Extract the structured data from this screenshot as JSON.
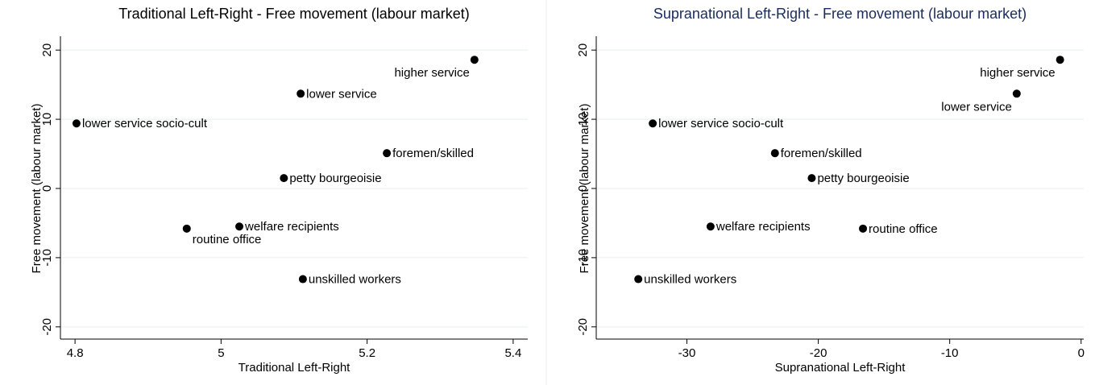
{
  "chart_data": [
    {
      "type": "scatter",
      "title": "Traditional Left-Right - Free movement (labour market)",
      "title_color": "#000000",
      "x_label": "Traditional Left-Right",
      "y_label": "Free movement (labour market)",
      "labels": [
        "higher service",
        "lower service",
        "lower service socio-cult",
        "foremen/skilled",
        "petty bourgeoisie",
        "welfare recipients",
        "routine office",
        "unskilled workers"
      ],
      "x": [
        5.347,
        5.109,
        4.802,
        5.227,
        5.086,
        5.025,
        4.953,
        5.112
      ],
      "values": [
        18.6,
        13.7,
        9.4,
        5.1,
        1.5,
        -5.5,
        -5.8,
        -13.1
      ],
      "color": "#000000",
      "grid": true,
      "xlim": [
        4.78,
        5.42
      ],
      "xticks": [
        4.8,
        5,
        5.2,
        5.4
      ],
      "ylim": [
        -22,
        22
      ],
      "yticks": [
        -20,
        -10,
        0,
        10,
        20
      ]
    },
    {
      "type": "scatter",
      "title": "Supranational Left-Right - Free movement (labour market)",
      "title_color": "#1a2b5e",
      "x_label": "Supranational Left-Right",
      "y_label": "Free movement (labour market)",
      "labels": [
        "higher service",
        "lower service",
        "lower service socio-cult",
        "foremen/skilled",
        "petty bourgeoisie",
        "welfare recipients",
        "routine office",
        "unskilled workers"
      ],
      "x": [
        -1.6,
        -4.9,
        -32.6,
        -23.3,
        -20.5,
        -28.2,
        -16.6,
        -33.7
      ],
      "values": [
        18.6,
        13.7,
        9.4,
        5.1,
        1.5,
        -5.5,
        -5.8,
        -13.1
      ],
      "color": "#000000",
      "grid": true,
      "xlim": [
        -36.9,
        0.2
      ],
      "xticks": [
        -30,
        -20,
        -10,
        0
      ],
      "ylim": [
        -22,
        22
      ],
      "yticks": [
        -20,
        -10,
        0,
        10,
        20
      ]
    }
  ]
}
